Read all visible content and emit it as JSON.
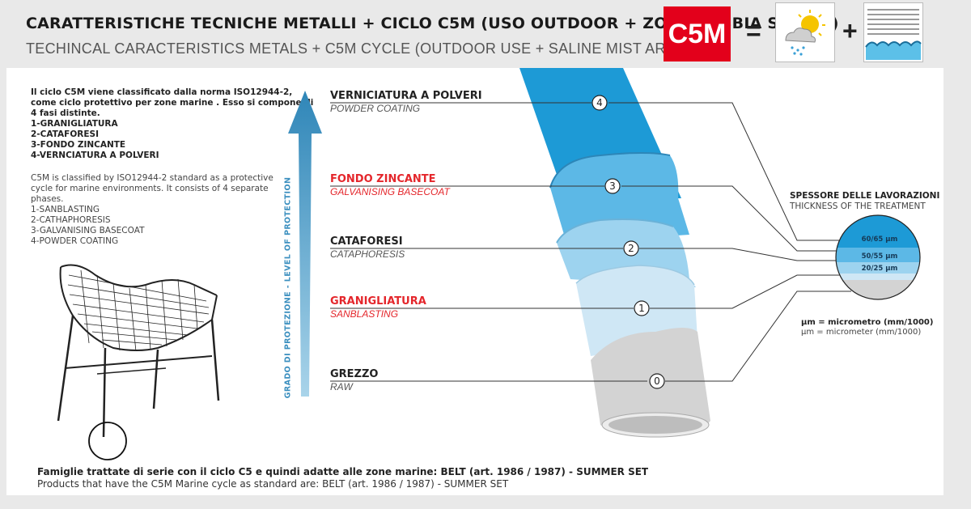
{
  "header": {
    "title_it": "CARATTERISTICHE TECNICHE METALLI + CICLO C5M (USO OUTDOOR + ZONE NEBBIA SALINA)",
    "title_en": "TECHINCAL CARACTERISTICS  METALS + C5M CYCLE (OUTDOOR USE + SALINE MIST AREAS)",
    "badge": "C5M",
    "equals": "=",
    "plus": "+",
    "icons": [
      "weather-sun-rain-icon",
      "sea-waves-icon"
    ],
    "accent_color": "#e3001b"
  },
  "description": {
    "it_lines": [
      "Il ciclo C5M viene classificato dalla norma ISO12944-2,",
      "come ciclo protettivo per zone marine . Esso si compone di",
      "4 fasi distinte.",
      "1-GRANIGLIATURA",
      "2-CATAFORESI",
      "3-FONDO ZINCANTE",
      "4-VERNCIATURA A POLVERI"
    ],
    "en_lines": [
      "C5M is classified by ISO12944-2 standard as a protective",
      "cycle for marine environments. It consists of 4 separate",
      "phases.",
      "1-SANBLASTING",
      "2-CATHAPHORESIS",
      "3-GALVANISING BASECOAT",
      "4-POWDER COATING"
    ]
  },
  "protection_axis": {
    "label": "GRADO DI PROTEZIONE - LEVEL OF PROTECTION",
    "color": "#3b8fbf"
  },
  "steps": [
    {
      "num": "4",
      "name": "VERNICIATURA A POLVERI",
      "sub": "POWDER COATING",
      "highlight": false
    },
    {
      "num": "3",
      "name": "FONDO ZINCANTE",
      "sub": "GALVANISING BASECOAT",
      "highlight": true
    },
    {
      "num": "2",
      "name": "CATAFORESI",
      "sub": "CATAPHORESIS",
      "highlight": false
    },
    {
      "num": "1",
      "name": "GRANIGLIATURA",
      "sub": "SANBLASTING",
      "highlight": true
    },
    {
      "num": "0",
      "name": "GREZZO",
      "sub": "RAW",
      "highlight": false
    }
  ],
  "thickness": {
    "title": "SPESSORE DELLE LAVORAZIONI",
    "subtitle": "THICKNESS OF THE TREATMENT",
    "layers": [
      "60/65 µm",
      "50/55 µm",
      "20/25 µm"
    ],
    "unit_it": "µm = micrometro (mm/1000)",
    "unit_en": "µm = micrometer  (mm/1000)"
  },
  "footer": {
    "it": "Famiglie trattate di serie con il ciclo C5 e quindi adatte alle zone marine: BELT (art. 1986 / 1987)  - SUMMER SET",
    "en": "Products that have the C5M  Marine cycle as standard are: BELT (art. 1986 / 1987)  - SUMMER SET"
  },
  "colors": {
    "layer4": "#1d9ad6",
    "layer3": "#5cb8e6",
    "layer2": "#9dd3ef",
    "layer1": "#cfe7f5",
    "raw": "#d3d3d3",
    "highlight": "#e4262b"
  }
}
